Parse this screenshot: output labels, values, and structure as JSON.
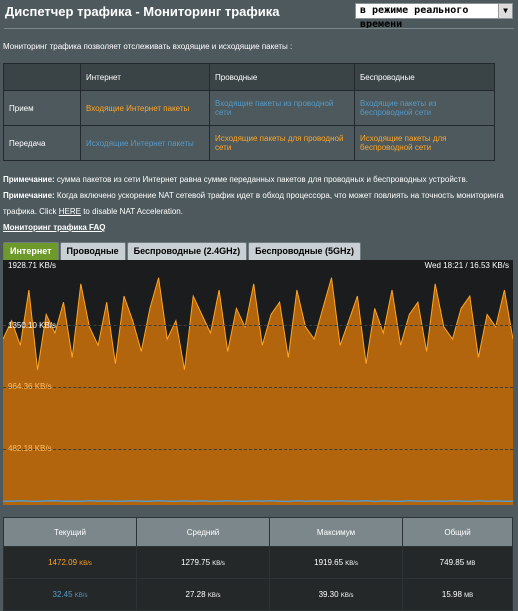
{
  "header": {
    "title": "Диспетчер трафика - Мониторинг трафика",
    "mode_select": "в режиме реального времени"
  },
  "intro": "Мониторинг трафика позволяет отслеживать входящие и исходящие пакеты :",
  "matrix": {
    "headers": [
      "",
      "Интернет",
      "Проводные",
      "Беспроводные"
    ],
    "rows": [
      {
        "label": "Прием",
        "internet": "Входящие Интернет пакеты",
        "wired": "Входящие пакеты из проводной сети",
        "wireless": "Входящие пакеты из беспроводной сети"
      },
      {
        "label": "Передача",
        "internet": "Исходящие Интернет пакеты",
        "wired": "Исходящие пакеты для проводной сети",
        "wireless": "Исходящие пакеты для беспроводной сети"
      }
    ]
  },
  "notes": {
    "note1_label": "Примечание:",
    "note1_text": " сумма пакетов из сети Интернет равна сумме переданных пакетов для проводных и беспроводных устройств.",
    "note2_label": "Примечание:",
    "note2_text_a": " Когда включено ускорение NAT сетевой трафик идет в обход процессора, что может повлиять на точность мониторинга трафика. Click ",
    "note2_link": "HERE",
    "note2_text_b": " to disable NAT Acceleration.",
    "faq": "Мониторинг трафика FAQ"
  },
  "tabs": [
    "Интернет",
    "Проводные",
    "Беспроводные (2.4GHz)",
    "Беспроводные (5GHz)"
  ],
  "graph": {
    "y_labels": [
      "1928.71 KB/s",
      "1350.10 KB/s",
      "964.36 KB/s",
      "482.18 KB/s"
    ],
    "timestamp": "Wed 18:21 / 16.53 KB/s",
    "colors": {
      "rx": "#b3650e",
      "rx_line": "#ffa523",
      "tx": "#569ac7",
      "bg": "#1a1c1d"
    }
  },
  "chart_data": {
    "type": "area",
    "ylim": [
      0,
      1928.71
    ],
    "series": [
      {
        "values": [
          1350,
          1500,
          1300,
          1750,
          1100,
          1550,
          1400,
          1650,
          1200,
          1800,
          1450,
          1300,
          1650,
          1150,
          1700,
          1500,
          1250,
          1600,
          1850,
          1350,
          1500,
          1100,
          1700,
          1550,
          1400,
          1750,
          1250,
          1600,
          1450,
          1800,
          1300,
          1550,
          1650,
          1200,
          1750,
          1450,
          1350,
          1600,
          1850,
          1300,
          1500,
          1700,
          1150,
          1600,
          1400,
          1750,
          1300,
          1550,
          1650,
          1250,
          1800,
          1450,
          1350,
          1600,
          1700,
          1200,
          1550,
          1450,
          1750,
          1350
        ]
      },
      {
        "values": [
          32,
          30,
          34,
          31,
          29,
          33,
          35,
          30,
          32,
          31,
          34,
          30,
          33,
          29,
          32,
          35,
          31,
          30,
          34,
          32,
          31,
          33,
          30,
          35,
          29,
          32,
          34,
          31,
          30,
          33,
          32,
          35,
          31,
          29,
          34,
          30,
          33,
          32,
          31,
          35,
          30,
          32,
          34,
          29,
          33,
          31,
          30,
          35,
          32,
          31,
          33,
          30,
          34,
          32,
          29,
          35,
          31,
          33,
          30,
          32
        ]
      }
    ]
  },
  "stats": {
    "headers": [
      "Текущий",
      "Средний",
      "Максимум",
      "Общий"
    ],
    "rx": {
      "current": "1472.09",
      "avg": "1279.75",
      "max": "1919.65",
      "total": "749.85"
    },
    "tx": {
      "current": "32.45",
      "avg": "27.28",
      "max": "39.30",
      "total": "15.98"
    },
    "rate_unit": "KB/s",
    "total_unit": "MB"
  }
}
